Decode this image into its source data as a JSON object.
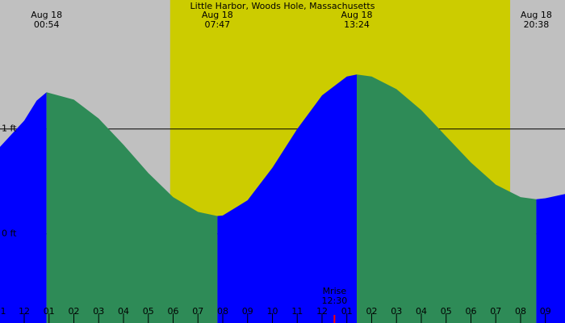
{
  "chart_data": {
    "type": "area",
    "title": "Little Harbor, Woods Hole, Massachusetts",
    "background": "#c0c0c0",
    "daylight_color": "#cccc00",
    "daylight": [
      5.88,
      19.58
    ],
    "xlim": [
      -0.976,
      21.79
    ],
    "ylim": [
      -0.85,
      2.23
    ],
    "yticks": [
      {
        "value": 0,
        "label": "0 ft"
      },
      {
        "value": 1,
        "label": "1 ft"
      }
    ],
    "xticks": [
      {
        "value": -1,
        "label": "1"
      },
      {
        "value": 0,
        "label": "12"
      },
      {
        "value": 1,
        "label": "01"
      },
      {
        "value": 2,
        "label": "02"
      },
      {
        "value": 3,
        "label": "03"
      },
      {
        "value": 4,
        "label": "04"
      },
      {
        "value": 5,
        "label": "05"
      },
      {
        "value": 6,
        "label": "06"
      },
      {
        "value": 7,
        "label": "07"
      },
      {
        "value": 8,
        "label": "08"
      },
      {
        "value": 9,
        "label": "09"
      },
      {
        "value": 10,
        "label": "10"
      },
      {
        "value": 11,
        "label": "11"
      },
      {
        "value": 12,
        "label": "12"
      },
      {
        "value": 13,
        "label": "01"
      },
      {
        "value": 14,
        "label": "02"
      },
      {
        "value": 15,
        "label": "03"
      },
      {
        "value": 16,
        "label": "04"
      },
      {
        "value": 17,
        "label": "05"
      },
      {
        "value": 18,
        "label": "06"
      },
      {
        "value": 19,
        "label": "07"
      },
      {
        "value": 20,
        "label": "08"
      },
      {
        "value": 21,
        "label": "09"
      }
    ],
    "segments": [
      {
        "color": "#0000ff",
        "x": [
          -0.976,
          0,
          0.5,
          0.9
        ],
        "values": [
          0.83,
          1.08,
          1.27,
          1.35
        ]
      },
      {
        "color": "#2e8b57",
        "x": [
          0.9,
          2,
          3,
          4,
          5,
          6,
          7,
          7.783
        ],
        "values": [
          1.35,
          1.28,
          1.1,
          0.85,
          0.58,
          0.35,
          0.21,
          0.17
        ]
      },
      {
        "color": "#0000ff",
        "x": [
          7.783,
          8,
          9,
          10,
          11,
          12,
          13,
          13.4
        ],
        "values": [
          0.17,
          0.175,
          0.32,
          0.63,
          1.0,
          1.32,
          1.5,
          1.52
        ]
      },
      {
        "color": "#2e8b57",
        "x": [
          13.4,
          14,
          15,
          16,
          17,
          18,
          19,
          20,
          20.633
        ],
        "values": [
          1.52,
          1.5,
          1.38,
          1.18,
          0.93,
          0.68,
          0.47,
          0.35,
          0.33
        ]
      },
      {
        "color": "#0000ff",
        "x": [
          20.633,
          21,
          21.79
        ],
        "values": [
          0.33,
          0.34,
          0.38
        ]
      }
    ],
    "events": [
      {
        "date": "Aug 18",
        "time": "00:54",
        "t": 0.9
      },
      {
        "date": "Aug 18",
        "time": "07:47",
        "t": 7.783
      },
      {
        "date": "Aug 18",
        "time": "13:24",
        "t": 13.4
      },
      {
        "date": "Aug 18",
        "time": "20:38",
        "t": 20.633
      }
    ],
    "moonrise": {
      "label": "Mrise",
      "time": "12:30",
      "t": 12.5
    }
  }
}
